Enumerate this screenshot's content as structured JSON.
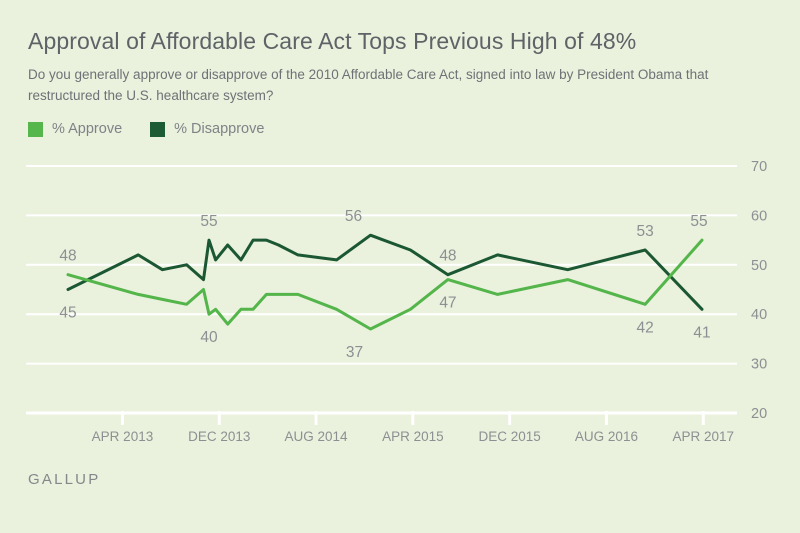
{
  "header": {
    "title": "Approval of Affordable Care Act Tops Previous High of 48%",
    "subtitle": "Do you generally approve or disapprove of the 2010 Affordable Care Act, signed into law by President Obama that restructured the U.S. healthcare system?"
  },
  "legend": {
    "items": [
      {
        "label": "% Approve",
        "color": "#55b64b"
      },
      {
        "label": "% Disapprove",
        "color": "#1c5b33"
      }
    ]
  },
  "footer": {
    "brand": "GALLUP"
  },
  "colors": {
    "background": "#eaf1dd",
    "gridline": "#ffffff",
    "axis_text": "#8c9092",
    "annotation_text": "#8c9092",
    "approve_line": "#53b54a",
    "disapprove_line": "#1b5733"
  },
  "chart_data": {
    "type": "line",
    "title": "Approval of Affordable Care Act Tops Previous High of 48%",
    "x": [
      "Nov 2012",
      "May 2013",
      "Jul 2013",
      "Sep 2013",
      "Oct 2013",
      "Nov 2013",
      "Dec 2013",
      "Jan 2014",
      "Feb 2014",
      "Mar 2014",
      "Apr 2014",
      "May 2014",
      "Jul 2014",
      "Oct 2014",
      "Nov 2014",
      "Apr 2015",
      "Jul 2015",
      "Nov 2015",
      "May 2016",
      "Nov 2016",
      "Apr 2017"
    ],
    "t_months_since_first_poll": [
      0,
      5.8,
      7.8,
      9.8,
      11.2,
      11.65,
      12.2,
      13.2,
      14.3,
      15.3,
      16.4,
      17.4,
      19.0,
      22.2,
      25.0,
      28.3,
      31.4,
      35.5,
      41.3,
      47.7,
      52.4
    ],
    "series": [
      {
        "name": "% Approve",
        "key": "approve",
        "values": [
          48,
          44,
          43,
          42,
          45,
          40,
          41,
          38,
          41,
          41,
          44,
          44,
          44,
          41,
          37,
          41,
          47,
          44,
          47,
          42,
          55
        ]
      },
      {
        "name": "% Disapprove",
        "key": "disapprove",
        "values": [
          45,
          52,
          49,
          50,
          47,
          55,
          51,
          54,
          51,
          55,
          55,
          54,
          52,
          51,
          56,
          53,
          48,
          52,
          49,
          53,
          41
        ]
      }
    ],
    "annotations": [
      {
        "series": "approve",
        "index": 0,
        "text": "48",
        "pos": "above",
        "dx": 0
      },
      {
        "series": "disapprove",
        "index": 0,
        "text": "45",
        "pos": "below",
        "dx": 0
      },
      {
        "series": "disapprove",
        "index": 5,
        "text": "55",
        "pos": "above",
        "dx": 0
      },
      {
        "series": "approve",
        "index": 5,
        "text": "40",
        "pos": "below",
        "dx": 0
      },
      {
        "series": "disapprove",
        "index": 14,
        "text": "56",
        "pos": "above",
        "dx": -17
      },
      {
        "series": "approve",
        "index": 14,
        "text": "37",
        "pos": "below",
        "dx": -16
      },
      {
        "series": "disapprove",
        "index": 16,
        "text": "48",
        "pos": "above",
        "dx": 0
      },
      {
        "series": "approve",
        "index": 16,
        "text": "47",
        "pos": "below",
        "dx": 0
      },
      {
        "series": "disapprove",
        "index": 19,
        "text": "53",
        "pos": "above",
        "dx": 0
      },
      {
        "series": "approve",
        "index": 19,
        "text": "42",
        "pos": "below",
        "dx": 0
      },
      {
        "series": "approve",
        "index": 20,
        "text": "55",
        "pos": "above",
        "dx": -3
      },
      {
        "series": "disapprove",
        "index": 20,
        "text": "41",
        "pos": "below",
        "dx": 0
      }
    ],
    "x_axis": {
      "tick_labels": [
        "APR 2013",
        "DEC 2013",
        "AUG 2014",
        "APR 2015",
        "DEC 2015",
        "AUG 2016",
        "APR 2017"
      ],
      "tick_t": [
        4.5,
        12.5,
        20.5,
        28.5,
        36.5,
        44.5,
        52.5
      ]
    },
    "y_axis": {
      "ticks": [
        70,
        60,
        50,
        40,
        30,
        20
      ],
      "side": "right"
    },
    "ylim": [
      20,
      70
    ],
    "grid": "horizontal",
    "legend_position": "top-left"
  }
}
